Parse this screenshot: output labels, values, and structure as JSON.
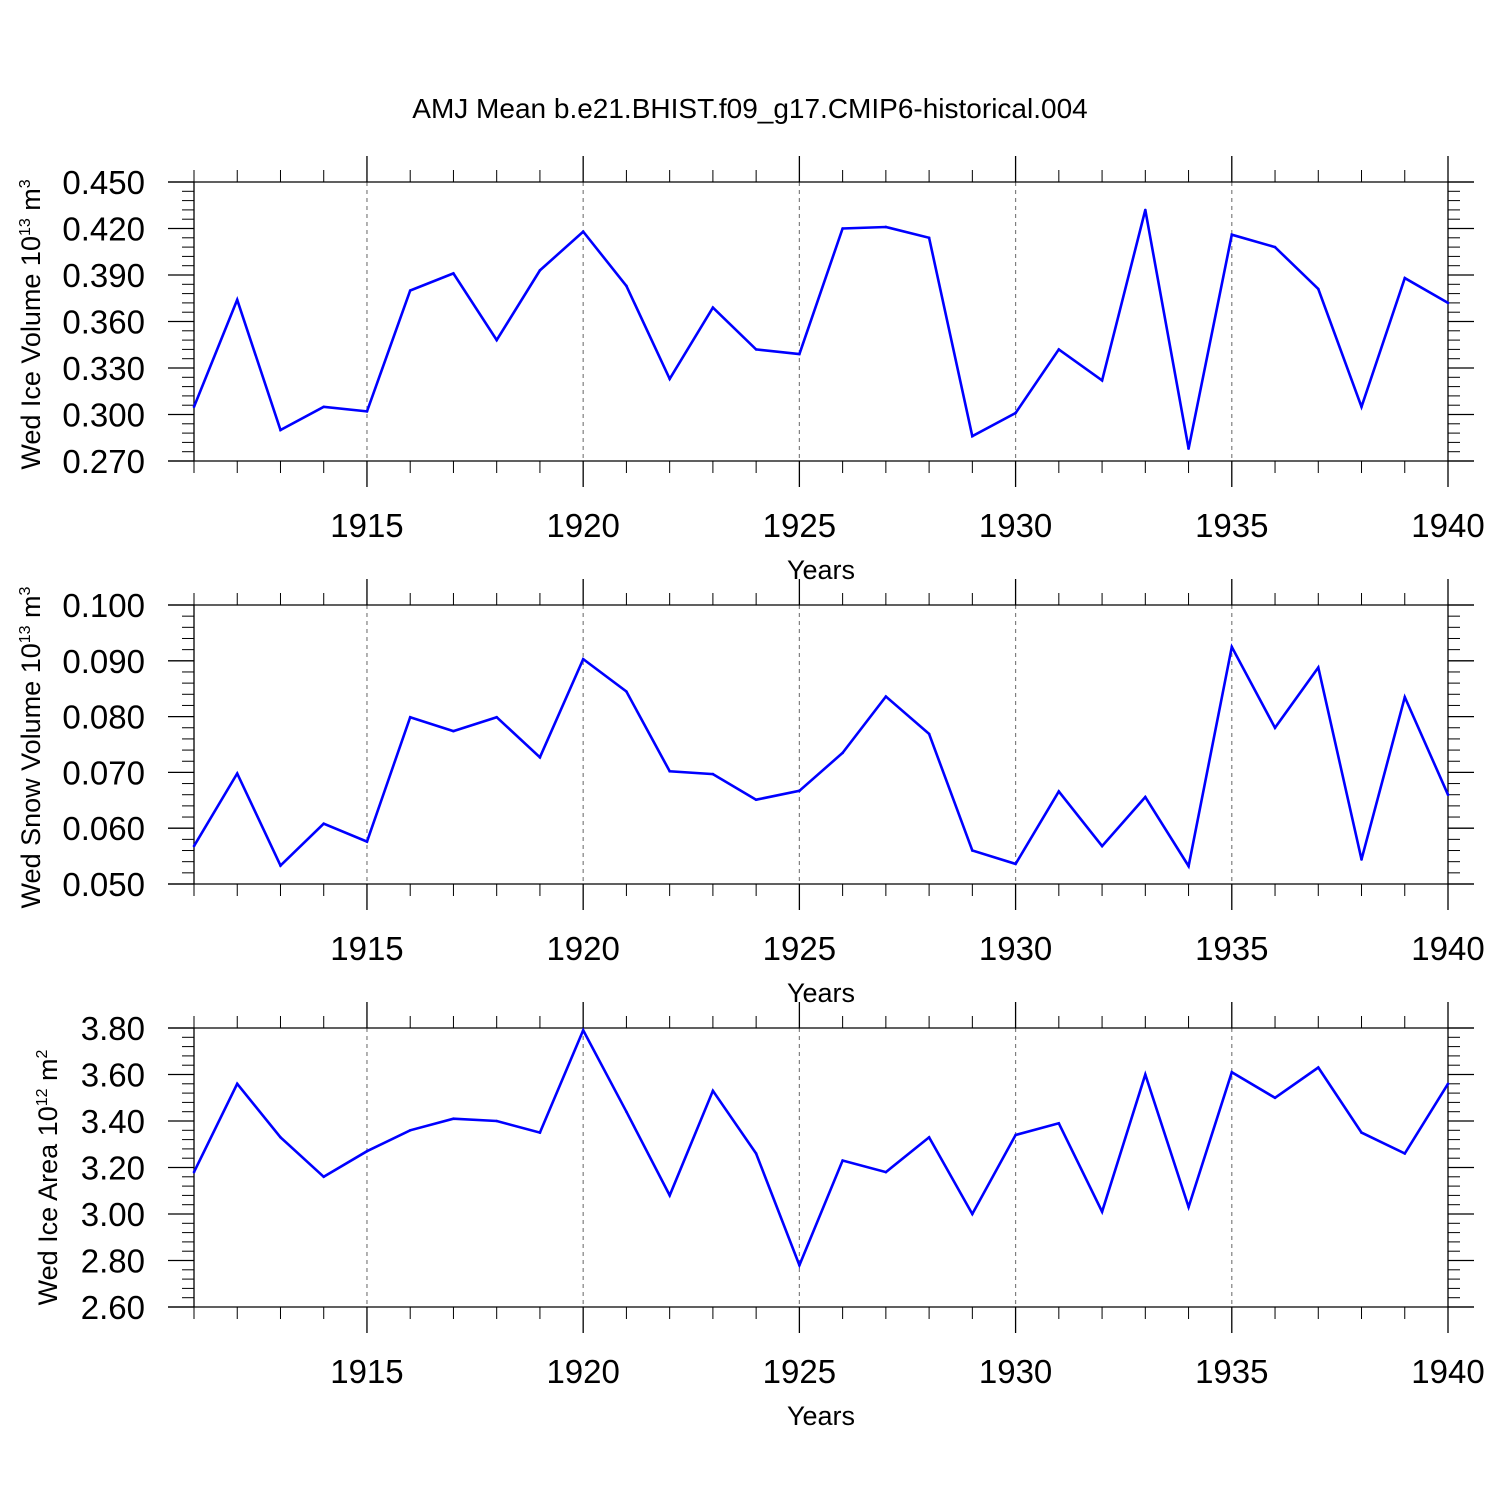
{
  "title": "AMJ Mean b.e21.BHIST.f09_g17.CMIP6-historical.004",
  "colors": {
    "line": "#0000ff",
    "axis": "#000000",
    "grid": "#7f7f7f",
    "background": "#ffffff"
  },
  "chart_data": [
    {
      "type": "line",
      "name": "ice-volume",
      "ylabel": {
        "prefix": "Wed Ice Volume 10",
        "exponent": "13",
        "unit": " m",
        "unit_exponent": "3"
      },
      "xlabel": "Years",
      "xlim": [
        1911,
        1940
      ],
      "ylim": [
        0.27,
        0.45
      ],
      "yticks": [
        "0.270",
        "0.300",
        "0.330",
        "0.360",
        "0.390",
        "0.420",
        "0.450"
      ],
      "ytick_values": [
        0.27,
        0.3,
        0.33,
        0.36,
        0.39,
        0.42,
        0.45
      ],
      "xticks": [
        "1915",
        "1920",
        "1925",
        "1930",
        "1935",
        "1940"
      ],
      "xtick_values": [
        1915,
        1920,
        1925,
        1930,
        1935,
        1940
      ],
      "gridlines_x": [
        1915,
        1920,
        1925,
        1930,
        1935
      ],
      "x": [
        1911,
        1912,
        1913,
        1914,
        1915,
        1916,
        1917,
        1918,
        1919,
        1920,
        1921,
        1922,
        1923,
        1924,
        1925,
        1926,
        1927,
        1928,
        1929,
        1930,
        1931,
        1932,
        1933,
        1934,
        1935,
        1936,
        1937,
        1938,
        1939,
        1940
      ],
      "values": [
        0.305,
        0.374,
        0.29,
        0.305,
        0.302,
        0.38,
        0.391,
        0.348,
        0.393,
        0.418,
        0.383,
        0.323,
        0.369,
        0.342,
        0.339,
        0.42,
        0.421,
        0.414,
        0.286,
        0.301,
        0.342,
        0.322,
        0.432,
        0.278,
        0.416,
        0.408,
        0.381,
        0.305,
        0.388,
        0.372
      ]
    },
    {
      "type": "line",
      "name": "snow-volume",
      "ylabel": {
        "prefix": "Wed Snow Volume 10",
        "exponent": "13",
        "unit": " m",
        "unit_exponent": "3"
      },
      "xlabel": "Years",
      "xlim": [
        1911,
        1940
      ],
      "ylim": [
        0.05,
        0.1
      ],
      "yticks": [
        "0.050",
        "0.060",
        "0.070",
        "0.080",
        "0.090",
        "0.100"
      ],
      "ytick_values": [
        0.05,
        0.06,
        0.07,
        0.08,
        0.09,
        0.1
      ],
      "xticks": [
        "1915",
        "1920",
        "1925",
        "1930",
        "1935",
        "1940"
      ],
      "xtick_values": [
        1915,
        1920,
        1925,
        1930,
        1935,
        1940
      ],
      "gridlines_x": [
        1915,
        1920,
        1925,
        1930,
        1935
      ],
      "x": [
        1911,
        1912,
        1913,
        1914,
        1915,
        1916,
        1917,
        1918,
        1919,
        1920,
        1921,
        1922,
        1923,
        1924,
        1925,
        1926,
        1927,
        1928,
        1929,
        1930,
        1931,
        1932,
        1933,
        1934,
        1935,
        1936,
        1937,
        1938,
        1939,
        1940
      ],
      "values": [
        0.0568,
        0.0698,
        0.0533,
        0.0608,
        0.0576,
        0.0799,
        0.0774,
        0.0799,
        0.0727,
        0.0903,
        0.0845,
        0.0702,
        0.0697,
        0.0651,
        0.0667,
        0.0735,
        0.0836,
        0.0769,
        0.056,
        0.0536,
        0.0666,
        0.0568,
        0.0656,
        0.0532,
        0.0925,
        0.078,
        0.0888,
        0.0544,
        0.0835,
        0.066
      ]
    },
    {
      "type": "line",
      "name": "ice-area",
      "ylabel": {
        "prefix": "Wed Ice Area 10",
        "exponent": "12",
        "unit": " m",
        "unit_exponent": "2"
      },
      "xlabel": "Years",
      "xlim": [
        1911,
        1940
      ],
      "ylim": [
        2.6,
        3.8
      ],
      "yticks": [
        "2.60",
        "2.80",
        "3.00",
        "3.20",
        "3.40",
        "3.60",
        "3.80"
      ],
      "ytick_values": [
        2.6,
        2.8,
        3.0,
        3.2,
        3.4,
        3.6,
        3.8
      ],
      "xticks": [
        "1915",
        "1920",
        "1925",
        "1930",
        "1935",
        "1940"
      ],
      "xtick_values": [
        1915,
        1920,
        1925,
        1930,
        1935,
        1940
      ],
      "gridlines_x": [
        1915,
        1920,
        1925,
        1930,
        1935
      ],
      "x": [
        1911,
        1912,
        1913,
        1914,
        1915,
        1916,
        1917,
        1918,
        1919,
        1920,
        1921,
        1922,
        1923,
        1924,
        1925,
        1926,
        1927,
        1928,
        1929,
        1930,
        1931,
        1932,
        1933,
        1934,
        1935,
        1936,
        1937,
        1938,
        1939,
        1940
      ],
      "values": [
        3.18,
        3.56,
        3.33,
        3.16,
        3.27,
        3.36,
        3.41,
        3.4,
        3.35,
        3.79,
        3.44,
        3.08,
        3.53,
        3.26,
        2.78,
        3.23,
        3.18,
        3.33,
        3.0,
        3.34,
        3.39,
        3.01,
        3.6,
        3.03,
        3.61,
        3.5,
        3.63,
        3.35,
        3.26,
        3.56
      ]
    }
  ]
}
